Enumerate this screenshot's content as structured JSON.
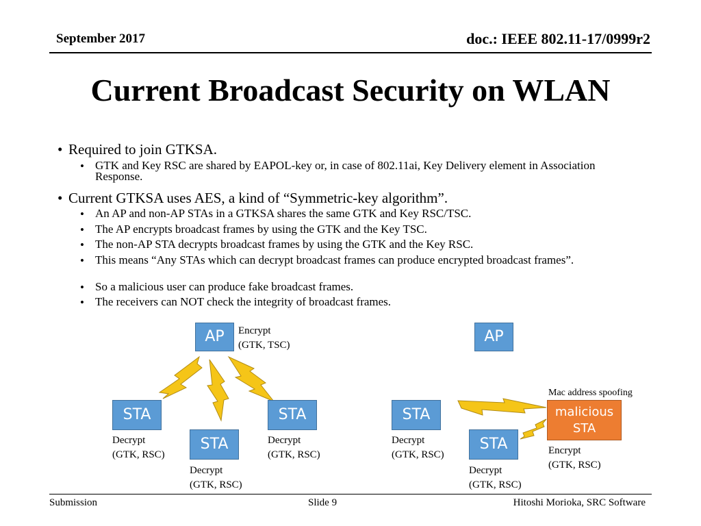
{
  "header": {
    "date": "September 2017",
    "doc": "doc.: IEEE 802.11-17/0999r2"
  },
  "title": "Current Broadcast Security on WLAN",
  "bullets": [
    {
      "text": "Required to join GTKSA.",
      "sub": [
        "GTK and Key RSC are shared by EAPOL-key or, in case of 802.11ai, Key Delivery element in Association Response."
      ]
    },
    {
      "text": "Current GTKSA uses AES, a kind of “Symmetric-key algorithm”.",
      "sub": [
        "An AP and non-AP STAs in a GTKSA shares the same GTK and Key RSC/TSC.",
        "The AP encrypts broadcast frames by using the GTK and the Key TSC.",
        "The non-AP STA decrypts broadcast frames by using the GTK and the Key RSC.",
        "This means “Any STAs which can decrypt broadcast frames can produce encrypted broadcast frames”.",
        "So a malicious user can produce fake broadcast frames.",
        "The receivers can NOT check the integrity of broadcast frames."
      ]
    }
  ],
  "diagram_left": {
    "ap": "AP",
    "ap_caption": [
      "Encrypt",
      "(GTK, TSC)"
    ],
    "sta": "STA",
    "sta_caption": [
      "Decrypt",
      "(GTK, RSC)"
    ]
  },
  "diagram_right": {
    "ap": "AP",
    "sta": "STA",
    "sta_caption": [
      "Decrypt",
      "(GTK, RSC)"
    ],
    "spoof_label": "Mac address spoofing",
    "malicious": [
      "malicious",
      "STA"
    ],
    "malicious_caption": [
      "Encrypt",
      "(GTK, RSC)"
    ]
  },
  "footer": {
    "left": "Submission",
    "center": "Slide 9",
    "right": "Hitoshi Morioka, SRC Software"
  },
  "colors": {
    "node": "#5b9bd5",
    "malicious": "#ed7d31",
    "bolt": "#f5c518"
  }
}
